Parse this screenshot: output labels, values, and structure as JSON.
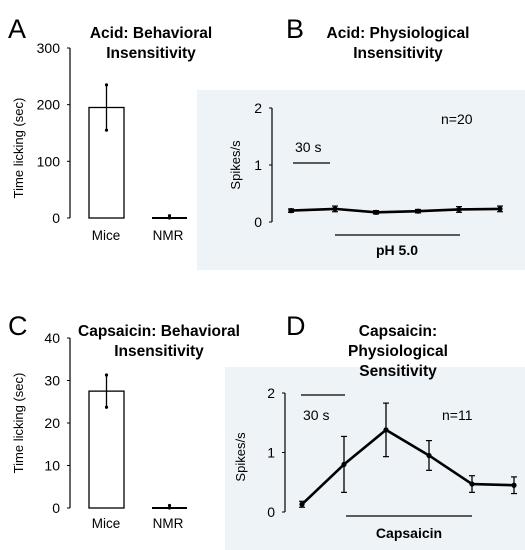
{
  "chart_data": [
    {
      "panel": "A",
      "type": "bar",
      "title": "Acid: Behavioral Insensitivity",
      "ylabel": "Time licking (sec)",
      "ylim": [
        0,
        300
      ],
      "yticks": [
        "0",
        "100",
        "200",
        "300"
      ],
      "categories": [
        "Mice",
        "NMR"
      ],
      "values": [
        195,
        2
      ],
      "errors": [
        40,
        2
      ]
    },
    {
      "panel": "B",
      "type": "line",
      "title": "Acid: Physiological Insensitivity",
      "ylabel": "Spikes/s",
      "ylim": [
        0,
        2
      ],
      "yticks": [
        "0",
        "1",
        "2"
      ],
      "x": [
        1,
        2,
        3,
        4,
        5,
        6
      ],
      "values": [
        0.2,
        0.23,
        0.17,
        0.19,
        0.22,
        0.23
      ],
      "errors": [
        0.03,
        0.05,
        0.03,
        0.03,
        0.05,
        0.05
      ],
      "annotations": {
        "n": "n=20",
        "scale": "30 s",
        "stimulus": "pH 5.0"
      }
    },
    {
      "panel": "C",
      "type": "bar",
      "title": "Capsaicin: Behavioral Insensitivity",
      "ylabel": "Time licking (sec)",
      "ylim": [
        0,
        40
      ],
      "yticks": [
        "0",
        "10",
        "20",
        "30",
        "40"
      ],
      "categories": [
        "Mice",
        "NMR"
      ],
      "values": [
        27.5,
        0.3
      ],
      "errors": [
        3.8,
        0.3
      ]
    },
    {
      "panel": "D",
      "type": "line",
      "title": "Capsaicin: Physiological Sensitivity",
      "ylabel": "Spikes/s",
      "ylim": [
        0,
        2
      ],
      "yticks": [
        "0",
        "1",
        "2"
      ],
      "x": [
        1,
        2,
        3,
        4,
        5,
        6
      ],
      "values": [
        0.13,
        0.8,
        1.38,
        0.95,
        0.47,
        0.45
      ],
      "errors": [
        0.05,
        0.47,
        0.45,
        0.25,
        0.14,
        0.14
      ],
      "annotations": {
        "n": "n=11",
        "scale": "30 s",
        "stimulus": "Capsaicin"
      }
    }
  ]
}
